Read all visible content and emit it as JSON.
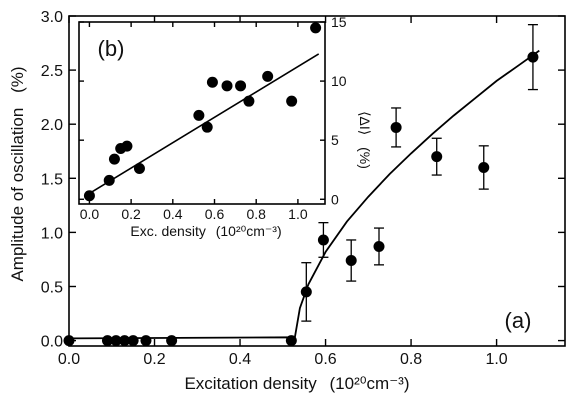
{
  "chart_data": [
    {
      "type": "scatter",
      "panel_label": "(a)",
      "xlabel": "Excitation density",
      "xlabel_unit": "(10²⁰cm⁻³)",
      "ylabel": "Amplitude of oscillation",
      "ylabel_unit": "(%)",
      "xlim": [
        0,
        1.16
      ],
      "ylim": [
        -0.05,
        3.0
      ],
      "x_ticks": [
        0.0,
        0.2,
        0.4,
        0.6,
        0.8,
        1.0
      ],
      "x_tick_labels": [
        "0.0",
        "0.2",
        "0.4",
        "0.6",
        "0.8",
        "1.0"
      ],
      "y_ticks": [
        0.0,
        0.5,
        1.0,
        1.5,
        2.0,
        2.5,
        3.0
      ],
      "y_tick_labels": [
        "0.0",
        "0.5",
        "1.0",
        "1.5",
        "2.0",
        "2.5",
        "3.0"
      ],
      "grid": false,
      "points": [
        {
          "x": 0.0,
          "y": 0.0
        },
        {
          "x": 0.09,
          "y": 0.0
        },
        {
          "x": 0.11,
          "y": 0.0
        },
        {
          "x": 0.13,
          "y": 0.0
        },
        {
          "x": 0.15,
          "y": 0.0
        },
        {
          "x": 0.18,
          "y": 0.0
        },
        {
          "x": 0.24,
          "y": 0.0
        },
        {
          "x": 0.52,
          "y": 0.0
        },
        {
          "x": 0.555,
          "y": 0.45,
          "err": 0.27
        },
        {
          "x": 0.595,
          "y": 0.93,
          "err": 0.16
        },
        {
          "x": 0.66,
          "y": 0.74,
          "err": 0.19
        },
        {
          "x": 0.725,
          "y": 0.87,
          "err": 0.17
        },
        {
          "x": 0.765,
          "y": 1.97,
          "err": 0.18
        },
        {
          "x": 0.86,
          "y": 1.7,
          "err": 0.17
        },
        {
          "x": 0.97,
          "y": 1.6,
          "err": 0.2
        },
        {
          "x": 1.085,
          "y": 2.62,
          "err": 0.3
        }
      ],
      "fit_line": {
        "x": [
          0.0,
          0.52,
          0.527,
          0.54,
          0.56,
          0.6,
          0.65,
          0.7,
          0.75,
          0.8,
          0.85,
          0.9,
          0.95,
          1.0,
          1.05,
          1.1
        ],
        "y": [
          0.02,
          0.03,
          0.0,
          0.3,
          0.52,
          0.82,
          1.1,
          1.33,
          1.54,
          1.73,
          1.91,
          2.08,
          2.24,
          2.4,
          2.54,
          2.68
        ]
      }
    },
    {
      "type": "scatter",
      "panel_label": "(b)",
      "xlabel": "Exc. density",
      "xlabel_unit": "(10²⁰cm⁻³)",
      "ylabel": "⟨ΔI⟩",
      "ylabel_unit": "(%)",
      "xlim": [
        -0.05,
        1.13
      ],
      "ylim": [
        -0.4,
        15.0
      ],
      "x_ticks": [
        0.0,
        0.2,
        0.4,
        0.6,
        0.8,
        1.0
      ],
      "x_tick_labels": [
        "0.0",
        "0.2",
        "0.4",
        "0.6",
        "0.8",
        "1.0"
      ],
      "y_ticks": [
        0,
        5,
        10,
        15
      ],
      "y_tick_labels": [
        "0",
        "5",
        "10",
        "15"
      ],
      "y_axis_side": "right",
      "grid": false,
      "points": [
        {
          "x": 0.0,
          "y": 0.3
        },
        {
          "x": 0.095,
          "y": 1.6
        },
        {
          "x": 0.12,
          "y": 3.4
        },
        {
          "x": 0.15,
          "y": 4.3
        },
        {
          "x": 0.18,
          "y": 4.5
        },
        {
          "x": 0.24,
          "y": 2.6
        },
        {
          "x": 0.525,
          "y": 7.1
        },
        {
          "x": 0.565,
          "y": 6.1
        },
        {
          "x": 0.59,
          "y": 9.9
        },
        {
          "x": 0.66,
          "y": 9.6
        },
        {
          "x": 0.725,
          "y": 9.6
        },
        {
          "x": 0.765,
          "y": 8.3
        },
        {
          "x": 0.855,
          "y": 10.4
        },
        {
          "x": 0.97,
          "y": 8.3
        },
        {
          "x": 1.085,
          "y": 14.5
        }
      ],
      "fit_line": {
        "x": [
          0.0,
          1.1
        ],
        "y": [
          0.5,
          12.3
        ]
      }
    }
  ]
}
